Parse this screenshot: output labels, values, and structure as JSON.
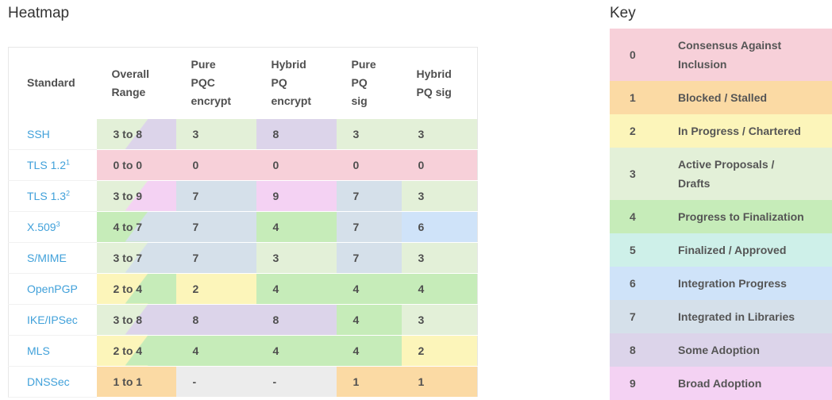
{
  "heatmap": {
    "title": "Heatmap",
    "columns": [
      "Standard",
      "Overall\nRange",
      "Pure\nPQC\nencrypt",
      "Hybrid\nPQ\nencrypt",
      "Pure\nPQ\nsig",
      "Hybrid\nPQ sig"
    ],
    "rows": [
      {
        "standard": "SSH",
        "footnote": "",
        "range": "3 to 8",
        "range_from": 3,
        "range_to": 8,
        "values": [
          "3",
          "8",
          "3",
          "3"
        ]
      },
      {
        "standard": "TLS 1.2",
        "footnote": "1",
        "range": "0 to 0",
        "range_from": 0,
        "range_to": 0,
        "values": [
          "0",
          "0",
          "0",
          "0"
        ]
      },
      {
        "standard": "TLS 1.3",
        "footnote": "2",
        "range": "3 to 9",
        "range_from": 3,
        "range_to": 9,
        "values": [
          "7",
          "9",
          "7",
          "3"
        ]
      },
      {
        "standard": "X.509",
        "footnote": "3",
        "range": "4 to 7",
        "range_from": 4,
        "range_to": 7,
        "values": [
          "7",
          "4",
          "7",
          "6"
        ]
      },
      {
        "standard": "S/MIME",
        "footnote": "",
        "range": "3 to 7",
        "range_from": 3,
        "range_to": 7,
        "values": [
          "7",
          "3",
          "7",
          "3"
        ]
      },
      {
        "standard": "OpenPGP",
        "footnote": "",
        "range": "2 to 4",
        "range_from": 2,
        "range_to": 4,
        "values": [
          "2",
          "4",
          "4",
          "4"
        ]
      },
      {
        "standard": "IKE/IPSec",
        "footnote": "",
        "range": "3 to 8",
        "range_from": 3,
        "range_to": 8,
        "values": [
          "8",
          "8",
          "4",
          "3"
        ]
      },
      {
        "standard": "MLS",
        "footnote": "",
        "range": "2 to 4",
        "range_from": 2,
        "range_to": 4,
        "values": [
          "4",
          "4",
          "4",
          "2"
        ]
      },
      {
        "standard": "DNSSec",
        "footnote": "",
        "range": "1 to 1",
        "range_from": 1,
        "range_to": 1,
        "values": [
          "-",
          "-",
          "1",
          "1"
        ]
      }
    ]
  },
  "key": {
    "title": "Key",
    "items": [
      {
        "level": "0",
        "label": "Consensus Against\nInclusion"
      },
      {
        "level": "1",
        "label": "Blocked / Stalled"
      },
      {
        "level": "2",
        "label": "In Progress / Chartered"
      },
      {
        "level": "3",
        "label": "Active Proposals /\nDrafts"
      },
      {
        "level": "4",
        "label": "Progress to Finalization"
      },
      {
        "level": "5",
        "label": "Finalized / Approved"
      },
      {
        "level": "6",
        "label": "Integration Progress"
      },
      {
        "level": "7",
        "label": "Integrated in Libraries"
      },
      {
        "level": "8",
        "label": "Some Adoption"
      },
      {
        "level": "9",
        "label": "Broad Adoption"
      }
    ]
  },
  "colors": {
    "levels": {
      "0": "#f7d0d9",
      "1": "#fbdaa4",
      "2": "#fcf5ba",
      "3": "#e3f0d8",
      "4": "#c6ecb9",
      "5": "#cef0e9",
      "6": "#cfe3f9",
      "7": "#d5e0ea",
      "8": "#dcd4ea",
      "9": "#f4d2f3"
    },
    "na_cell": "#ececec",
    "link": "#41a1da"
  },
  "chart_data": {
    "type": "heatmap",
    "title": "Heatmap",
    "rows": [
      "SSH",
      "TLS 1.2",
      "TLS 1.3",
      "X.509",
      "S/MIME",
      "OpenPGP",
      "IKE/IPSec",
      "MLS",
      "DNSSec"
    ],
    "columns": [
      "Overall Range",
      "Pure PQC encrypt",
      "Hybrid PQ encrypt",
      "Pure PQ sig",
      "Hybrid PQ sig"
    ],
    "overall_range": [
      [
        3,
        8
      ],
      [
        0,
        0
      ],
      [
        3,
        9
      ],
      [
        4,
        7
      ],
      [
        3,
        7
      ],
      [
        2,
        4
      ],
      [
        3,
        8
      ],
      [
        2,
        4
      ],
      [
        1,
        1
      ]
    ],
    "values": [
      [
        3,
        8,
        3,
        3
      ],
      [
        0,
        0,
        0,
        0
      ],
      [
        7,
        9,
        7,
        3
      ],
      [
        7,
        4,
        7,
        6
      ],
      [
        7,
        3,
        7,
        3
      ],
      [
        2,
        4,
        4,
        4
      ],
      [
        8,
        8,
        4,
        3
      ],
      [
        4,
        4,
        4,
        2
      ],
      [
        null,
        null,
        1,
        1
      ]
    ],
    "scale_min": 0,
    "scale_max": 9,
    "legend_title": "Key",
    "legend_position": "right",
    "legend": {
      "0": "Consensus Against Inclusion",
      "1": "Blocked / Stalled",
      "2": "In Progress / Chartered",
      "3": "Active Proposals / Drafts",
      "4": "Progress to Finalization",
      "5": "Finalized / Approved",
      "6": "Integration Progress",
      "7": "Integrated in Libraries",
      "8": "Some Adoption",
      "9": "Broad Adoption"
    }
  }
}
